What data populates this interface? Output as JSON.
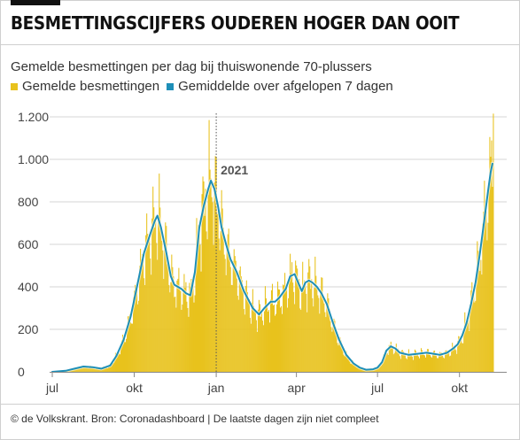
{
  "header": {
    "title": "BESMETTINGSCIJFERS OUDEREN HOGER DAN OOIT"
  },
  "chart_data": {
    "type": "bar",
    "subtitle": "Gemelde besmettingen per dag bij thuiswonende 70-plussers",
    "legend": [
      {
        "label": "Gemelde besmettingen",
        "color": "#e8c21d"
      },
      {
        "label": "Gemiddelde over afgelopen 7 dagen",
        "color": "#1e8fb8"
      }
    ],
    "ylim": [
      0,
      1200
    ],
    "y_ticks": [
      {
        "value": 0,
        "label": "0"
      },
      {
        "value": 200,
        "label": "200"
      },
      {
        "value": 400,
        "label": "400"
      },
      {
        "value": 600,
        "label": "600"
      },
      {
        "value": 800,
        "label": "800"
      },
      {
        "value": 1000,
        "label": "1.000"
      },
      {
        "value": 1200,
        "label": "1.200"
      }
    ],
    "x_ticks": [
      {
        "day": 0,
        "label": "jul"
      },
      {
        "day": 92,
        "label": "okt"
      },
      {
        "day": 184,
        "label": "jan"
      },
      {
        "day": 274,
        "label": "apr"
      },
      {
        "day": 365,
        "label": "jul"
      },
      {
        "day": 457,
        "label": "okt"
      }
    ],
    "x_range_days": [
      -3,
      510
    ],
    "annotation": {
      "day": 184,
      "label": "2021"
    },
    "average_series": [
      [
        0,
        0
      ],
      [
        15,
        5
      ],
      [
        25,
        15
      ],
      [
        35,
        25
      ],
      [
        45,
        22
      ],
      [
        55,
        15
      ],
      [
        65,
        30
      ],
      [
        72,
        75
      ],
      [
        80,
        150
      ],
      [
        88,
        260
      ],
      [
        95,
        400
      ],
      [
        103,
        560
      ],
      [
        110,
        650
      ],
      [
        115,
        710
      ],
      [
        118,
        735
      ],
      [
        122,
        680
      ],
      [
        128,
        560
      ],
      [
        133,
        450
      ],
      [
        137,
        410
      ],
      [
        145,
        390
      ],
      [
        150,
        370
      ],
      [
        155,
        360
      ],
      [
        160,
        470
      ],
      [
        165,
        680
      ],
      [
        170,
        780
      ],
      [
        175,
        860
      ],
      [
        178,
        900
      ],
      [
        182,
        860
      ],
      [
        186,
        780
      ],
      [
        190,
        680
      ],
      [
        195,
        600
      ],
      [
        200,
        530
      ],
      [
        207,
        470
      ],
      [
        215,
        380
      ],
      [
        225,
        300
      ],
      [
        232,
        270
      ],
      [
        238,
        300
      ],
      [
        245,
        330
      ],
      [
        250,
        330
      ],
      [
        255,
        350
      ],
      [
        262,
        390
      ],
      [
        267,
        450
      ],
      [
        272,
        460
      ],
      [
        276,
        420
      ],
      [
        280,
        380
      ],
      [
        284,
        420
      ],
      [
        288,
        430
      ],
      [
        292,
        420
      ],
      [
        297,
        400
      ],
      [
        302,
        370
      ],
      [
        308,
        320
      ],
      [
        315,
        230
      ],
      [
        322,
        150
      ],
      [
        330,
        80
      ],
      [
        338,
        40
      ],
      [
        345,
        20
      ],
      [
        352,
        10
      ],
      [
        360,
        12
      ],
      [
        365,
        20
      ],
      [
        370,
        45
      ],
      [
        375,
        100
      ],
      [
        380,
        120
      ],
      [
        385,
        110
      ],
      [
        390,
        90
      ],
      [
        400,
        80
      ],
      [
        410,
        85
      ],
      [
        420,
        90
      ],
      [
        428,
        85
      ],
      [
        435,
        80
      ],
      [
        443,
        90
      ],
      [
        450,
        110
      ],
      [
        455,
        130
      ],
      [
        460,
        170
      ],
      [
        465,
        230
      ],
      [
        470,
        320
      ],
      [
        475,
        420
      ],
      [
        480,
        560
      ],
      [
        485,
        720
      ],
      [
        489,
        850
      ],
      [
        492,
        940
      ],
      [
        494,
        980
      ]
    ]
  },
  "footer": {
    "source": "© de Volkskrant. Bron: Coronadashboard | De laatste dagen zijn niet compleet"
  }
}
